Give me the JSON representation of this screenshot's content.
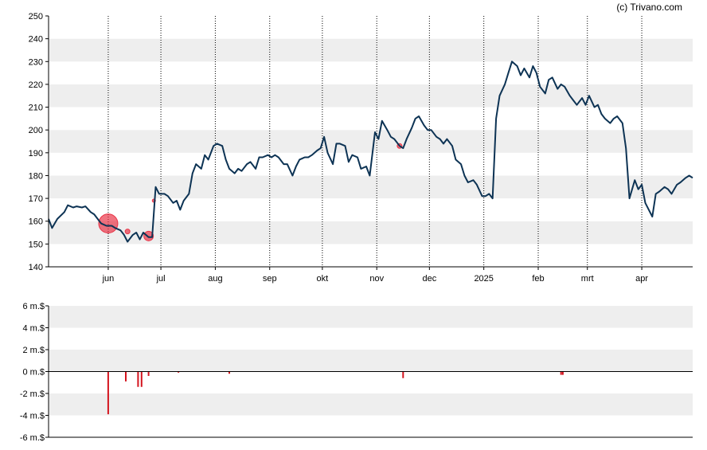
{
  "credit": "(c) Trivano.com",
  "colors": {
    "price_line": "#0d3354",
    "marker": "#e8283c",
    "band": "#eeeeee",
    "axis": "#000000",
    "bar": "#d4141e"
  },
  "chart_data": [
    {
      "type": "line",
      "title": "",
      "xlabel": "",
      "ylabel": "",
      "ylim": [
        140,
        250
      ],
      "y_ticks": [
        "140",
        "150",
        "160",
        "170",
        "180",
        "190",
        "200",
        "210",
        "220",
        "230",
        "240",
        "250"
      ],
      "x_ticks": [
        {
          "label": "jun",
          "date": "2024-06-01"
        },
        {
          "label": "jul",
          "date": "2024-07-01"
        },
        {
          "label": "aug",
          "date": "2024-08-01"
        },
        {
          "label": "sep",
          "date": "2024-09-01"
        },
        {
          "label": "okt",
          "date": "2024-10-01"
        },
        {
          "label": "nov",
          "date": "2024-11-01"
        },
        {
          "label": "dec",
          "date": "2024-12-01"
        },
        {
          "label": "2025",
          "date": "2025-01-01"
        },
        {
          "label": "feb",
          "date": "2025-02-01"
        },
        {
          "label": "mrt",
          "date": "2025-03-01"
        },
        {
          "label": "apr",
          "date": "2025-04-01"
        }
      ],
      "x_range": [
        "2024-04-28",
        "2025-04-30"
      ],
      "grid": "alternating horizontal bands, dotted vertical lines at month ticks",
      "series": [
        {
          "values": [
            [
              "2024-04-28",
              161
            ],
            [
              "2024-04-30",
              157
            ],
            [
              "2024-05-03",
              161
            ],
            [
              "2024-05-07",
              164
            ],
            [
              "2024-05-09",
              167
            ],
            [
              "2024-05-12",
              166
            ],
            [
              "2024-05-14",
              166.5
            ],
            [
              "2024-05-17",
              166
            ],
            [
              "2024-05-19",
              166.5
            ],
            [
              "2024-05-22",
              164
            ],
            [
              "2024-05-24",
              163
            ],
            [
              "2024-05-26",
              161
            ],
            [
              "2024-05-28",
              159
            ],
            [
              "2024-05-31",
              158
            ],
            [
              "2024-06-03",
              158
            ],
            [
              "2024-06-05",
              157
            ],
            [
              "2024-06-08",
              156
            ],
            [
              "2024-06-10",
              154
            ],
            [
              "2024-06-12",
              151
            ],
            [
              "2024-06-15",
              154
            ],
            [
              "2024-06-17",
              155
            ],
            [
              "2024-06-19",
              152
            ],
            [
              "2024-06-21",
              155
            ],
            [
              "2024-06-24",
              153
            ],
            [
              "2024-06-26",
              153
            ],
            [
              "2024-06-28",
              175
            ],
            [
              "2024-06-30",
              172
            ],
            [
              "2024-07-03",
              172
            ],
            [
              "2024-07-05",
              171
            ],
            [
              "2024-07-08",
              168
            ],
            [
              "2024-07-10",
              169
            ],
            [
              "2024-07-12",
              165
            ],
            [
              "2024-07-14",
              169
            ],
            [
              "2024-07-17",
              172
            ],
            [
              "2024-07-19",
              181
            ],
            [
              "2024-07-21",
              185
            ],
            [
              "2024-07-24",
              183
            ],
            [
              "2024-07-26",
              189
            ],
            [
              "2024-07-28",
              187
            ],
            [
              "2024-07-31",
              193
            ],
            [
              "2024-08-02",
              194
            ],
            [
              "2024-08-05",
              193
            ],
            [
              "2024-08-07",
              187
            ],
            [
              "2024-08-09",
              183
            ],
            [
              "2024-08-12",
              181
            ],
            [
              "2024-08-14",
              183
            ],
            [
              "2024-08-16",
              182
            ],
            [
              "2024-08-19",
              185
            ],
            [
              "2024-08-21",
              186
            ],
            [
              "2024-08-24",
              183
            ],
            [
              "2024-08-26",
              188
            ],
            [
              "2024-08-28",
              188
            ],
            [
              "2024-08-31",
              189
            ],
            [
              "2024-09-02",
              188
            ],
            [
              "2024-09-04",
              189
            ],
            [
              "2024-09-06",
              188
            ],
            [
              "2024-09-09",
              185
            ],
            [
              "2024-09-11",
              185
            ],
            [
              "2024-09-14",
              180
            ],
            [
              "2024-09-16",
              184
            ],
            [
              "2024-09-18",
              187
            ],
            [
              "2024-09-21",
              188
            ],
            [
              "2024-09-23",
              188
            ],
            [
              "2024-09-25",
              189
            ],
            [
              "2024-09-28",
              191
            ],
            [
              "2024-09-30",
              192
            ],
            [
              "2024-10-02",
              197
            ],
            [
              "2024-10-04",
              190
            ],
            [
              "2024-10-07",
              185
            ],
            [
              "2024-10-09",
              194
            ],
            [
              "2024-10-11",
              194
            ],
            [
              "2024-10-14",
              193
            ],
            [
              "2024-10-16",
              186
            ],
            [
              "2024-10-18",
              189
            ],
            [
              "2024-10-21",
              188
            ],
            [
              "2024-10-23",
              183
            ],
            [
              "2024-10-26",
              184
            ],
            [
              "2024-10-28",
              180
            ],
            [
              "2024-10-31",
              199
            ],
            [
              "2024-11-02",
              196
            ],
            [
              "2024-11-04",
              204
            ],
            [
              "2024-11-07",
              200
            ],
            [
              "2024-11-09",
              197
            ],
            [
              "2024-11-11",
              196
            ],
            [
              "2024-11-14",
              193
            ],
            [
              "2024-11-16",
              192
            ],
            [
              "2024-11-18",
              196
            ],
            [
              "2024-11-21",
              201
            ],
            [
              "2024-11-23",
              205
            ],
            [
              "2024-11-25",
              206
            ],
            [
              "2024-11-28",
              202
            ],
            [
              "2024-11-30",
              200
            ],
            [
              "2024-12-02",
              200
            ],
            [
              "2024-12-05",
              197
            ],
            [
              "2024-12-07",
              196
            ],
            [
              "2024-12-09",
              194
            ],
            [
              "2024-12-11",
              196
            ],
            [
              "2024-12-14",
              193
            ],
            [
              "2024-12-16",
              187
            ],
            [
              "2024-12-19",
              185
            ],
            [
              "2024-12-21",
              180
            ],
            [
              "2024-12-23",
              177
            ],
            [
              "2024-12-26",
              178
            ],
            [
              "2024-12-28",
              176
            ],
            [
              "2024-12-31",
              171
            ],
            [
              "2025-01-02",
              171
            ],
            [
              "2025-01-04",
              172
            ],
            [
              "2025-01-06",
              170
            ],
            [
              "2025-01-08",
              205
            ],
            [
              "2025-01-10",
              215
            ],
            [
              "2025-01-13",
              220
            ],
            [
              "2025-01-15",
              225
            ],
            [
              "2025-01-17",
              230
            ],
            [
              "2025-01-20",
              228
            ],
            [
              "2025-01-22",
              224
            ],
            [
              "2025-01-24",
              227
            ],
            [
              "2025-01-27",
              223
            ],
            [
              "2025-01-29",
              228
            ],
            [
              "2025-01-31",
              225
            ],
            [
              "2025-02-02",
              219
            ],
            [
              "2025-02-05",
              216
            ],
            [
              "2025-02-07",
              222
            ],
            [
              "2025-02-09",
              223
            ],
            [
              "2025-02-12",
              218
            ],
            [
              "2025-02-14",
              220
            ],
            [
              "2025-02-16",
              219
            ],
            [
              "2025-02-19",
              215
            ],
            [
              "2025-02-21",
              213
            ],
            [
              "2025-02-23",
              211
            ],
            [
              "2025-02-26",
              214
            ],
            [
              "2025-02-28",
              211
            ],
            [
              "2025-03-02",
              215
            ],
            [
              "2025-03-05",
              210
            ],
            [
              "2025-03-07",
              211
            ],
            [
              "2025-03-09",
              207
            ],
            [
              "2025-03-11",
              205
            ],
            [
              "2025-03-14",
              203
            ],
            [
              "2025-03-16",
              205
            ],
            [
              "2025-03-18",
              206
            ],
            [
              "2025-03-21",
              203
            ],
            [
              "2025-03-23",
              192
            ],
            [
              "2025-03-25",
              170
            ],
            [
              "2025-03-28",
              178
            ],
            [
              "2025-03-30",
              174
            ],
            [
              "2025-04-01",
              176
            ],
            [
              "2025-04-03",
              168
            ],
            [
              "2025-04-05",
              165
            ],
            [
              "2025-04-07",
              162
            ],
            [
              "2025-04-09",
              172
            ],
            [
              "2025-04-11",
              173
            ],
            [
              "2025-04-14",
              175
            ],
            [
              "2025-04-16",
              174
            ],
            [
              "2025-04-18",
              172
            ],
            [
              "2025-04-21",
              176
            ],
            [
              "2025-04-23",
              177
            ],
            [
              "2025-04-26",
              179
            ],
            [
              "2025-04-28",
              180
            ],
            [
              "2025-04-30",
              179
            ]
          ]
        }
      ],
      "markers": [
        {
          "date": "2024-06-01",
          "value": 159,
          "size": "large"
        },
        {
          "date": "2024-06-12",
          "value": 155.5,
          "size": "small"
        },
        {
          "date": "2024-06-24",
          "value": 153.5,
          "size": "medium"
        },
        {
          "date": "2024-06-27",
          "value": 169,
          "size": "tiny"
        },
        {
          "date": "2024-11-14",
          "value": 193,
          "size": "small"
        }
      ]
    },
    {
      "type": "bar",
      "title": "",
      "xlabel": "",
      "ylabel": "",
      "ylim": [
        -6,
        6
      ],
      "y_ticks": [
        "6 m.$",
        "4 m.$",
        "2 m.$",
        "0 m.$",
        "-2 m.$",
        "-4 m.$",
        "-6 m.$"
      ],
      "grid": "alternating horizontal bands, zero baseline",
      "bars": [
        [
          "2024-06-01",
          -3.9
        ],
        [
          "2024-06-11",
          -0.9
        ],
        [
          "2024-06-18",
          -1.4
        ],
        [
          "2024-06-20",
          -1.4
        ],
        [
          "2024-06-24",
          -0.4
        ],
        [
          "2024-07-11",
          -0.1
        ],
        [
          "2024-08-09",
          -0.2
        ],
        [
          "2024-11-16",
          -0.6
        ],
        [
          "2025-02-14",
          -0.3
        ],
        [
          "2025-02-15",
          -0.3
        ]
      ]
    }
  ]
}
